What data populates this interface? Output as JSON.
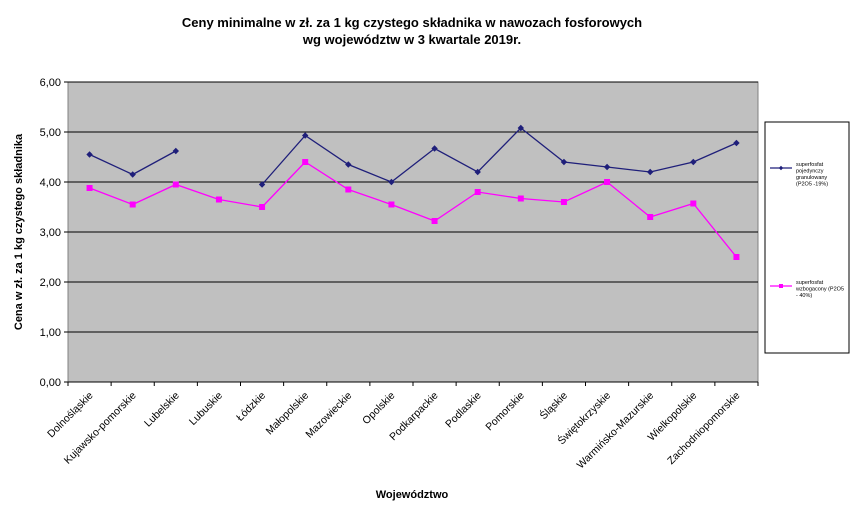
{
  "chart_data": {
    "type": "line",
    "title": [
      "Ceny minimalne  w zł. za 1 kg czystego składnika w nawozach fosforowych",
      "wg województw w 3 kwartale    2019r."
    ],
    "xlabel": "Województwo",
    "ylabel": "Cena w zł. za 1 kg czystego składnika",
    "ylim": [
      0,
      6
    ],
    "yticks": [
      "0,00",
      "1,00",
      "2,00",
      "3,00",
      "4,00",
      "5,00",
      "6,00"
    ],
    "grid": true,
    "legend_position": "right",
    "categories": [
      "Dolnośląskie",
      "Kujawsko-pomorskie",
      "Lubelskie",
      "Lubuskie",
      "Łódzkie",
      "Małopolskie",
      "Mazowieckie",
      "Opolskie",
      "Podkarpackie",
      "Podlaskie",
      "Pomorskie",
      "Śląskie",
      "Świętokrzyskie",
      "Warmińsko-Mazurskie",
      "Wielkopolskie",
      "Zachodniopomorskie"
    ],
    "series": [
      {
        "name": [
          "superfosfat",
          "pojedynczy",
          "granulowany",
          "(P2O5 -19%)"
        ],
        "color": "#1f1f7a",
        "marker": "diamond",
        "values": [
          4.55,
          4.15,
          4.62,
          null,
          3.95,
          4.93,
          4.35,
          4.0,
          4.67,
          4.2,
          5.08,
          4.4,
          4.3,
          4.2,
          4.4,
          4.78
        ]
      },
      {
        "name": [
          "superfosfat",
          "wzbogacony  (P2O5",
          "- 40%)"
        ],
        "color": "#ff00ff",
        "marker": "square",
        "values": [
          3.88,
          3.55,
          3.95,
          3.65,
          3.5,
          4.4,
          3.85,
          3.55,
          3.22,
          3.8,
          3.67,
          3.6,
          4.0,
          3.3,
          3.57,
          2.5
        ]
      }
    ]
  }
}
